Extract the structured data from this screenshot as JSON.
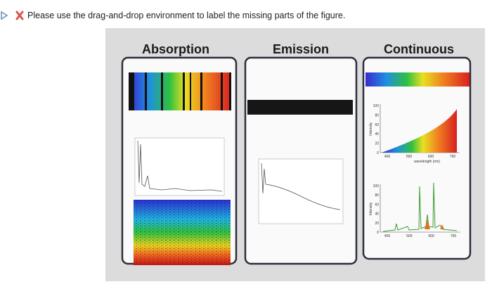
{
  "instruction": "Please use the drag-and-drop environment to label the missing parts of the figure.",
  "columns": [
    {
      "heading": "Absorption"
    },
    {
      "heading": "Emission"
    },
    {
      "heading": "Continuous"
    }
  ],
  "plots": [
    {
      "y_ticks": [
        "100",
        "80",
        "60",
        "40",
        "20",
        "0"
      ],
      "x_ticks": [
        "400",
        "500",
        "600",
        "700"
      ],
      "y_label": "Intensity",
      "x_label": "wavelength (nm)"
    },
    {
      "y_ticks": [
        "100",
        "80",
        "60",
        "40",
        "20",
        "0"
      ],
      "x_ticks": [
        "400",
        "500",
        "600",
        "700"
      ],
      "y_label": "Intensity"
    }
  ]
}
